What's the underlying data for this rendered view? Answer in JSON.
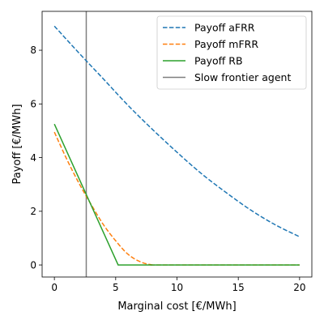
{
  "chart_data": {
    "type": "line",
    "title": "",
    "xlabel": "Marginal cost [€/MWh]",
    "ylabel": "Payoff [€/MWh]",
    "xlim": [
      -1,
      21
    ],
    "ylim": [
      -0.45,
      9.45
    ],
    "xticks": [
      0,
      5,
      10,
      15,
      20
    ],
    "yticks": [
      0,
      2,
      4,
      6,
      8
    ],
    "xtick_labels": [
      "0",
      "5",
      "10",
      "15",
      "20"
    ],
    "ytick_labels": [
      "0",
      "2",
      "4",
      "6",
      "8"
    ],
    "grid": false,
    "legend_position": "top-right",
    "series": [
      {
        "name": "Payoff aFRR",
        "style": "dashed",
        "color": "#1f77b4",
        "x": [
          0,
          2,
          4,
          6,
          8,
          10,
          12,
          14,
          16,
          18,
          20
        ],
        "y": [
          8.9,
          7.9,
          6.93,
          5.95,
          5.05,
          4.2,
          3.4,
          2.7,
          2.05,
          1.5,
          1.05
        ]
      },
      {
        "name": "Payoff mFRR",
        "style": "dashed",
        "color": "#ff7f0e",
        "x": [
          0,
          1,
          2,
          3,
          4,
          5,
          6,
          7,
          8,
          9,
          20
        ],
        "y": [
          4.95,
          3.95,
          3.05,
          2.25,
          1.5,
          0.9,
          0.4,
          0.12,
          0.0,
          0.0,
          0.0
        ]
      },
      {
        "name": "Payoff RB",
        "style": "solid",
        "color": "#2ca02c",
        "x": [
          0,
          5.2,
          20
        ],
        "y": [
          5.25,
          0.0,
          0.0
        ]
      }
    ],
    "vlines": [
      {
        "name": "Slow frontier agent",
        "x": 2.6,
        "color": "#7f7f7f"
      }
    ]
  }
}
